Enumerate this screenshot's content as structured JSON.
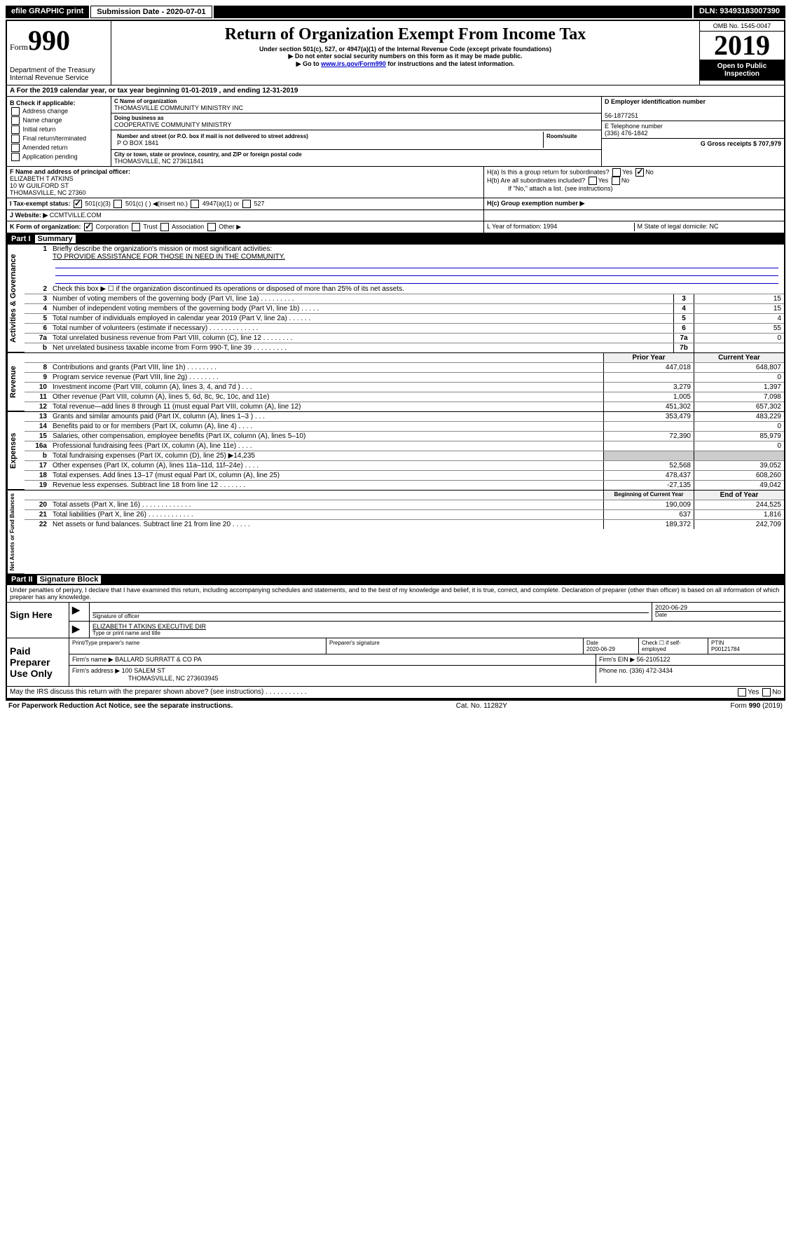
{
  "topbar": {
    "efile": "efile GRAPHIC print",
    "subdate_label": "Submission Date - 2020-07-01",
    "dln": "DLN: 93493183007390"
  },
  "header": {
    "form_prefix": "Form",
    "form_number": "990",
    "title": "Return of Organization Exempt From Income Tax",
    "sub1": "Under section 501(c), 527, or 4947(a)(1) of the Internal Revenue Code (except private foundations)",
    "sub2": "▶ Do not enter social security numbers on this form as it may be made public.",
    "sub3_pre": "▶ Go to ",
    "sub3_link": "www.irs.gov/Form990",
    "sub3_post": " for instructions and the latest information.",
    "dept": "Department of the Treasury\nInternal Revenue Service",
    "omb": "OMB No. 1545-0047",
    "year": "2019",
    "inspection": "Open to Public Inspection"
  },
  "lineA": "A For the 2019 calendar year, or tax year beginning 01-01-2019     , and ending 12-31-2019",
  "colB": {
    "title": "B Check if applicable:",
    "items": [
      "Address change",
      "Name change",
      "Initial return",
      "Final return/terminated",
      "Amended return",
      "Application pending"
    ]
  },
  "colC": {
    "name_label": "C Name of organization",
    "name": "THOMASVILLE COMMUNITY MINISTRY INC",
    "dba_label": "Doing business as",
    "dba": "COOPERATIVE COMMUNITY MINISTRY",
    "addr_label": "Number and street (or P.O. box if mail is not delivered to street address)",
    "room_label": "Room/suite",
    "addr": "P O BOX 1841",
    "city_label": "City or town, state or province, country, and ZIP or foreign postal code",
    "city": "THOMASVILLE, NC  273611841"
  },
  "colD": {
    "ein_label": "D Employer identification number",
    "ein": "56-1877251",
    "phone_label": "E Telephone number",
    "phone": "(336) 476-1842",
    "receipts_label": "G Gross receipts $ 707,979"
  },
  "lineF": {
    "label": "F  Name and address of principal officer:",
    "name": "ELIZABETH T ATKINS",
    "addr1": "10 W GUILFORD ST",
    "addr2": "THOMASVILLE, NC  27360"
  },
  "lineH": {
    "ha": "H(a)  Is this a group return for subordinates?",
    "ha_yes": "Yes",
    "ha_no": "No",
    "hb": "H(b)  Are all subordinates included?",
    "hb_yes": "Yes",
    "hb_no": "No",
    "hb_note": "If \"No,\" attach a list. (see instructions)",
    "hc": "H(c)  Group exemption number ▶"
  },
  "lineI": {
    "label": "I    Tax-exempt status:",
    "opts": [
      "501(c)(3)",
      "501(c) (  ) ◀(insert no.)",
      "4947(a)(1) or",
      "527"
    ]
  },
  "lineJ": {
    "label": "J   Website: ▶",
    "value": "CCMTVILLE.COM"
  },
  "lineK": {
    "label": "K Form of organization:",
    "opts": [
      "Corporation",
      "Trust",
      "Association",
      "Other ▶"
    ],
    "year_label": "L Year of formation: 1994",
    "state_label": "M State of legal domicile: NC"
  },
  "part1": {
    "label": "Part I",
    "title": "Summary"
  },
  "mission": {
    "num": "1",
    "label": "Briefly describe the organization's mission or most significant activities:",
    "text": "TO PROVIDE ASSISTANCE FOR THOSE IN NEED IN THE COMMUNITY."
  },
  "gov_rows": [
    {
      "num": "2",
      "desc": "Check this box ▶ ☐  if the organization discontinued its operations or disposed of more than 25% of its net assets."
    },
    {
      "num": "3",
      "desc": "Number of voting members of the governing body (Part VI, line 1a)   .    .    .    .    .    .    .    .    .",
      "box": "3",
      "val": "15"
    },
    {
      "num": "4",
      "desc": "Number of independent voting members of the governing body (Part VI, line 1b)   .    .    .    .    .",
      "box": "4",
      "val": "15"
    },
    {
      "num": "5",
      "desc": "Total number of individuals employed in calendar year 2019 (Part V, line 2a)   .    .    .    .    .    .",
      "box": "5",
      "val": "4"
    },
    {
      "num": "6",
      "desc": "Total number of volunteers (estimate if necessary)   .    .    .    .    .    .    .    .    .    .    .    .    .",
      "box": "6",
      "val": "55"
    },
    {
      "num": "7a",
      "desc": "Total unrelated business revenue from Part VIII, column (C), line 12   .    .    .    .    .    .    .    .",
      "box": "7a",
      "val": "0"
    },
    {
      "num": "b",
      "desc": "Net unrelated business taxable income from Form 990-T, line 39   .    .    .    .    .    .    .    .    .",
      "box": "7b",
      "val": ""
    }
  ],
  "two_col_header": {
    "prior": "Prior Year",
    "current": "Current Year"
  },
  "rev_rows": [
    {
      "num": "8",
      "desc": "Contributions and grants (Part VIII, line 1h)   .    .    .    .    .    .    .    .",
      "prior": "447,018",
      "curr": "648,807"
    },
    {
      "num": "9",
      "desc": "Program service revenue (Part VIII, line 2g)   .    .    .    .    .    .    .    .",
      "prior": "",
      "curr": "0"
    },
    {
      "num": "10",
      "desc": "Investment income (Part VIII, column (A), lines 3, 4, and 7d )   .    .    .",
      "prior": "3,279",
      "curr": "1,397"
    },
    {
      "num": "11",
      "desc": "Other revenue (Part VIII, column (A), lines 5, 6d, 8c, 9c, 10c, and 11e)",
      "prior": "1,005",
      "curr": "7,098"
    },
    {
      "num": "12",
      "desc": "Total revenue—add lines 8 through 11 (must equal Part VIII, column (A), line 12)",
      "prior": "451,302",
      "curr": "657,302"
    }
  ],
  "exp_rows": [
    {
      "num": "13",
      "desc": "Grants and similar amounts paid (Part IX, column (A), lines 1–3 )   .    .    .",
      "prior": "353,479",
      "curr": "483,229"
    },
    {
      "num": "14",
      "desc": "Benefits paid to or for members (Part IX, column (A), line 4)   .    .    .    .",
      "prior": "",
      "curr": "0"
    },
    {
      "num": "15",
      "desc": "Salaries, other compensation, employee benefits (Part IX, column (A), lines 5–10)",
      "prior": "72,390",
      "curr": "85,979"
    },
    {
      "num": "16a",
      "desc": "Professional fundraising fees (Part IX, column (A), line 11e)   .    .    .    .",
      "prior": "",
      "curr": "0"
    },
    {
      "num": "b",
      "desc": "Total fundraising expenses (Part IX, column (D), line 25) ▶14,235",
      "prior": null,
      "curr": null
    },
    {
      "num": "17",
      "desc": "Other expenses (Part IX, column (A), lines 11a–11d, 11f–24e)   .    .    .    .",
      "prior": "52,568",
      "curr": "39,052"
    },
    {
      "num": "18",
      "desc": "Total expenses. Add lines 13–17 (must equal Part IX, column (A), line 25)",
      "prior": "478,437",
      "curr": "608,260"
    },
    {
      "num": "19",
      "desc": "Revenue less expenses. Subtract line 18 from line 12   .    .    .    .    .    .    .",
      "prior": "-27,135",
      "curr": "49,042"
    }
  ],
  "net_header": {
    "begin": "Beginning of Current Year",
    "end": "End of Year"
  },
  "net_rows": [
    {
      "num": "20",
      "desc": "Total assets (Part X, line 16)   .    .    .    .    .    .    .    .    .    .    .    .    .",
      "prior": "190,009",
      "curr": "244,525"
    },
    {
      "num": "21",
      "desc": "Total liabilities (Part X, line 26)   .    .    .    .    .    .    .    .    .    .    .    .",
      "prior": "637",
      "curr": "1,816"
    },
    {
      "num": "22",
      "desc": "Net assets or fund balances. Subtract line 21 from line 20   .    .    .    .    .",
      "prior": "189,372",
      "curr": "242,709"
    }
  ],
  "part2": {
    "label": "Part II",
    "title": "Signature Block"
  },
  "penalties": "Under penalties of perjury, I declare that I have examined this return, including accompanying schedules and statements, and to the best of my knowledge and belief, it is true, correct, and complete. Declaration of preparer (other than officer) is based on all information of which preparer has any knowledge.",
  "sign": {
    "label": "Sign Here",
    "sig_officer": "Signature of officer",
    "date": "2020-06-29",
    "date_label": "Date",
    "name": "ELIZABETH T ATKINS  EXECUTIVE DIR",
    "name_label": "Type or print name and title"
  },
  "paid": {
    "label": "Paid Preparer Use Only",
    "col1": "Print/Type preparer's name",
    "col2": "Preparer's signature",
    "col3": "Date",
    "col3_val": "2020-06-29",
    "col4": "Check ☐ if self-employed",
    "col5": "PTIN",
    "col5_val": "P00121784",
    "firm_name_label": "Firm's name     ▶",
    "firm_name": "BALLARD SURRATT & CO PA",
    "firm_ein": "Firm's EIN ▶ 56-2105122",
    "firm_addr_label": "Firm's address ▶",
    "firm_addr": "100 SALEM ST",
    "firm_city": "THOMASVILLE, NC  273603945",
    "firm_phone": "Phone no. (336) 472-3434"
  },
  "discuss": "May the IRS discuss this return with the preparer shown above? (see instructions)   .    .    .    .    .    .    .    .    .    .    .",
  "discuss_yes": "Yes",
  "discuss_no": "No",
  "footer": {
    "left": "For Paperwork Reduction Act Notice, see the separate instructions.",
    "center": "Cat. No. 11282Y",
    "right": "Form 990 (2019)"
  },
  "side_labels": {
    "gov": "Activities & Governance",
    "rev": "Revenue",
    "exp": "Expenses",
    "net": "Net Assets or Fund Balances"
  }
}
